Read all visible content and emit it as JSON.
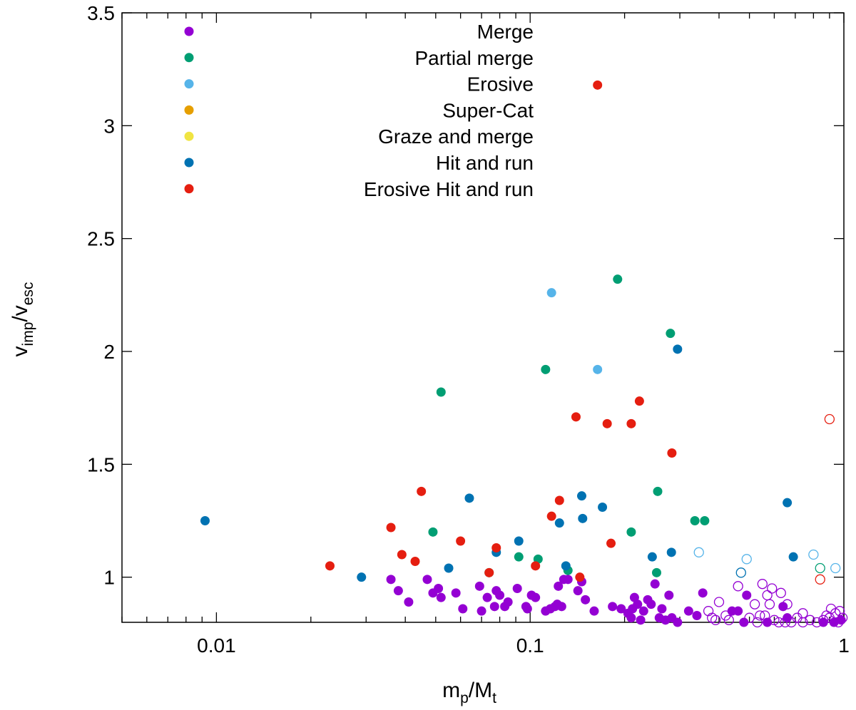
{
  "chart_data": {
    "type": "scatter",
    "title": "",
    "x_scale": "log",
    "xlim": [
      0.005,
      1
    ],
    "ylim": [
      0.8,
      3.5
    ],
    "grid": false,
    "legend_position": "top",
    "xlabel": {
      "main": "m",
      "sub1": "p",
      "mid": "/M",
      "sub2": "t"
    },
    "ylabel": {
      "main": "v",
      "sub1": "imp",
      "mid": "/v",
      "sub2": "esc"
    },
    "x_ticks": [
      {
        "value": 0.01,
        "label": "0.01"
      },
      {
        "value": 0.1,
        "label": "0.1"
      },
      {
        "value": 1,
        "label": "1"
      }
    ],
    "y_ticks": [
      {
        "value": 1,
        "label": "1"
      },
      {
        "value": 1.5,
        "label": "1.5"
      },
      {
        "value": 2,
        "label": "2"
      },
      {
        "value": 2.5,
        "label": "2.5"
      },
      {
        "value": 3,
        "label": "3"
      },
      {
        "value": 3.5,
        "label": "3.5"
      }
    ],
    "series": [
      {
        "name": "Merge",
        "color": "#9400d3",
        "points": [
          [
            0.036,
            0.99
          ],
          [
            0.038,
            0.94
          ],
          [
            0.041,
            0.89
          ],
          [
            0.047,
            0.99
          ],
          [
            0.049,
            0.93
          ],
          [
            0.051,
            0.95
          ],
          [
            0.052,
            0.91
          ],
          [
            0.058,
            0.93
          ],
          [
            0.061,
            0.86
          ],
          [
            0.069,
            0.96
          ],
          [
            0.07,
            0.85
          ],
          [
            0.073,
            0.91
          ],
          [
            0.077,
            0.87
          ],
          [
            0.078,
            0.94
          ],
          [
            0.08,
            0.92
          ],
          [
            0.083,
            0.87
          ],
          [
            0.085,
            0.89
          ],
          [
            0.091,
            0.95
          ],
          [
            0.097,
            0.87
          ],
          [
            0.098,
            0.86
          ],
          [
            0.101,
            0.92
          ],
          [
            0.104,
            0.91
          ],
          [
            0.112,
            0.85
          ],
          [
            0.116,
            0.86
          ],
          [
            0.12,
            0.87
          ],
          [
            0.122,
            0.88
          ],
          [
            0.123,
            0.96
          ],
          [
            0.126,
            0.87
          ],
          [
            0.128,
            0.99
          ],
          [
            0.132,
            0.99
          ],
          [
            0.142,
            0.94
          ],
          [
            0.146,
            0.98
          ],
          [
            0.15,
            0.9
          ],
          [
            0.16,
            0.85
          ],
          [
            0.183,
            0.87
          ],
          [
            0.195,
            0.86
          ],
          [
            0.205,
            0.84
          ],
          [
            0.21,
            0.82
          ],
          [
            0.212,
            0.86
          ],
          [
            0.215,
            0.91
          ],
          [
            0.22,
            0.88
          ],
          [
            0.225,
            0.81
          ],
          [
            0.23,
            0.85
          ],
          [
            0.237,
            0.9
          ],
          [
            0.243,
            0.88
          ],
          [
            0.25,
            0.97
          ],
          [
            0.258,
            0.82
          ],
          [
            0.263,
            0.86
          ],
          [
            0.27,
            0.81
          ],
          [
            0.277,
            0.92
          ],
          [
            0.283,
            0.82
          ],
          [
            0.295,
            0.8
          ],
          [
            0.32,
            0.85
          ],
          [
            0.34,
            0.83
          ],
          [
            0.355,
            0.93
          ],
          [
            0.44,
            0.85
          ],
          [
            0.46,
            0.85
          ],
          [
            0.48,
            0.8
          ],
          [
            0.49,
            0.92
          ],
          [
            0.57,
            0.8
          ],
          [
            0.64,
            0.87
          ],
          [
            0.66,
            0.82
          ],
          [
            0.86,
            0.8
          ],
          [
            0.93,
            0.8
          ],
          [
            0.98,
            0.81
          ]
        ]
      },
      {
        "name": "Partial merge",
        "color": "#009e73",
        "points": [
          [
            0.049,
            1.2
          ],
          [
            0.052,
            1.82
          ],
          [
            0.074,
            1.02
          ],
          [
            0.092,
            1.09
          ],
          [
            0.106,
            1.08
          ],
          [
            0.112,
            1.92
          ],
          [
            0.132,
            1.03
          ],
          [
            0.19,
            2.32
          ],
          [
            0.21,
            1.2
          ],
          [
            0.253,
            1.02
          ],
          [
            0.255,
            1.38
          ],
          [
            0.28,
            2.08
          ],
          [
            0.335,
            1.25
          ],
          [
            0.36,
            1.25
          ]
        ]
      },
      {
        "name": "Erosive",
        "color": "#56b4e9",
        "points": [
          [
            0.117,
            2.26
          ],
          [
            0.164,
            1.92
          ]
        ]
      },
      {
        "name": "Super-Cat",
        "color": "#e69f00",
        "points": []
      },
      {
        "name": "Graze and merge",
        "color": "#f0e442",
        "points": []
      },
      {
        "name": "Hit and run",
        "color": "#0072b2",
        "points": [
          [
            0.0092,
            1.25
          ],
          [
            0.029,
            1.0
          ],
          [
            0.055,
            1.04
          ],
          [
            0.064,
            1.35
          ],
          [
            0.078,
            1.11
          ],
          [
            0.092,
            1.16
          ],
          [
            0.124,
            1.24
          ],
          [
            0.13,
            1.05
          ],
          [
            0.146,
            1.36
          ],
          [
            0.147,
            1.26
          ],
          [
            0.17,
            1.31
          ],
          [
            0.245,
            1.09
          ],
          [
            0.282,
            1.11
          ],
          [
            0.295,
            2.01
          ],
          [
            0.66,
            1.33
          ],
          [
            0.69,
            1.09
          ]
        ]
      },
      {
        "name": "Erosive Hit and run",
        "color": "#e51e10",
        "points": [
          [
            0.023,
            1.05
          ],
          [
            0.036,
            1.22
          ],
          [
            0.039,
            1.1
          ],
          [
            0.043,
            1.07
          ],
          [
            0.045,
            1.38
          ],
          [
            0.06,
            1.16
          ],
          [
            0.074,
            1.02
          ],
          [
            0.078,
            1.13
          ],
          [
            0.104,
            1.05
          ],
          [
            0.117,
            1.27
          ],
          [
            0.124,
            1.34
          ],
          [
            0.14,
            1.71
          ],
          [
            0.144,
            1.0
          ],
          [
            0.164,
            3.18
          ],
          [
            0.176,
            1.68
          ],
          [
            0.181,
            1.15
          ],
          [
            0.21,
            1.68
          ],
          [
            0.223,
            1.78
          ],
          [
            0.283,
            1.55
          ]
        ]
      }
    ],
    "open_markers": {
      "note_points": "Open circles (unfilled markers) drawn in series colors",
      "points": [
        {
          "series": "Merge",
          "xy": [
            [
              0.37,
              0.85
            ],
            [
              0.38,
              0.82
            ],
            [
              0.39,
              0.81
            ],
            [
              0.4,
              0.89
            ],
            [
              0.42,
              0.83
            ],
            [
              0.43,
              0.81
            ],
            [
              0.46,
              0.96
            ],
            [
              0.5,
              0.82
            ],
            [
              0.52,
              0.88
            ],
            [
              0.54,
              0.83
            ],
            [
              0.55,
              0.97
            ],
            [
              0.56,
              0.83
            ],
            [
              0.58,
              0.88
            ],
            [
              0.57,
              0.92
            ],
            [
              0.59,
              0.95
            ],
            [
              0.6,
              0.81
            ],
            [
              0.62,
              0.8
            ],
            [
              0.63,
              0.93
            ],
            [
              0.66,
              0.88
            ],
            [
              0.68,
              0.8
            ],
            [
              0.71,
              0.82
            ],
            [
              0.74,
              0.84
            ],
            [
              0.78,
              0.81
            ],
            [
              0.82,
              0.8
            ],
            [
              0.86,
              0.81
            ],
            [
              0.88,
              0.83
            ],
            [
              0.9,
              0.82
            ],
            [
              0.91,
              0.86
            ],
            [
              0.94,
              0.84
            ],
            [
              0.97,
              0.85
            ],
            [
              0.99,
              0.82
            ],
            [
              0.53,
              0.8
            ],
            [
              0.65,
              0.8
            ],
            [
              0.74,
              0.8
            ],
            [
              0.96,
              0.8
            ]
          ]
        },
        {
          "series": "Partial merge",
          "xy": [
            [
              0.84,
              1.04
            ]
          ]
        },
        {
          "series": "Erosive",
          "xy": [
            [
              0.345,
              1.11
            ],
            [
              0.49,
              1.08
            ],
            [
              0.8,
              1.1
            ],
            [
              0.94,
              1.04
            ]
          ]
        },
        {
          "series": "Hit and run",
          "xy": [
            [
              0.47,
              1.02
            ]
          ]
        },
        {
          "series": "Erosive Hit and run",
          "xy": [
            [
              0.84,
              0.99
            ],
            [
              0.9,
              1.7
            ]
          ]
        }
      ]
    }
  }
}
